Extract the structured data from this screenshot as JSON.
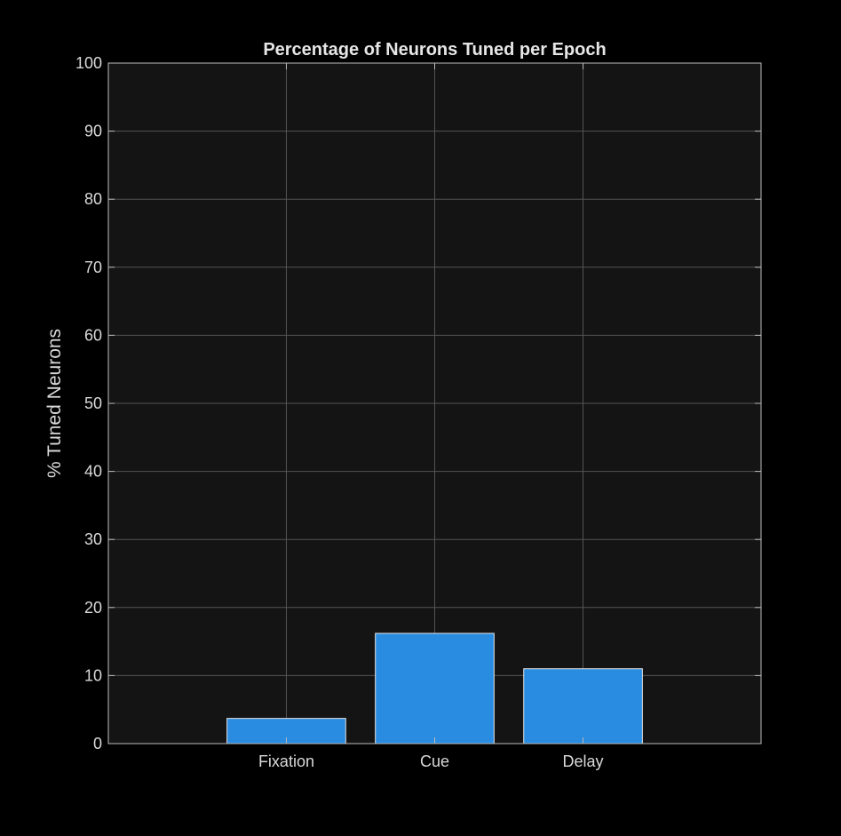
{
  "chart_data": {
    "type": "bar",
    "title": "Percentage of Neurons Tuned per Epoch",
    "xlabel": "",
    "ylabel": "% Tuned Neurons",
    "categories": [
      "Fixation",
      "Cue",
      "Delay"
    ],
    "values": [
      3.7,
      16.2,
      11.0
    ],
    "ylim": [
      0,
      100
    ],
    "yticks": [
      0,
      10,
      20,
      30,
      40,
      50,
      60,
      70,
      80,
      90,
      100
    ],
    "xlim": [
      -0.2,
      4.2
    ],
    "grid": true,
    "colors": {
      "background": "#000000",
      "plot_area": "#141414",
      "bar_fill": "#2a8ce0",
      "bar_edge": "#e6e6e6",
      "grid": "#555555",
      "axis": "#bbbbbb",
      "text": "#d9d9d9"
    }
  }
}
